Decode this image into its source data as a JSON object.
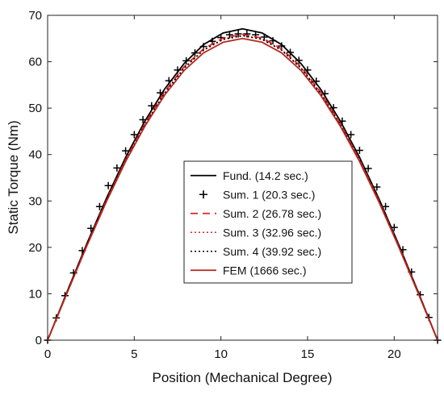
{
  "chart_data": {
    "type": "line",
    "xlabel": "Position (Mechanical Degree)",
    "ylabel": "Static Torque (Nm)",
    "xlim": [
      0,
      22.5
    ],
    "ylim": [
      0,
      70
    ],
    "xticks": [
      0,
      5,
      10,
      15,
      20
    ],
    "yticks": [
      0,
      10,
      20,
      30,
      40,
      50,
      60,
      70
    ],
    "grid": false,
    "legend_position": "lower-center",
    "series": [
      {
        "name": "Fund. (14.2 sec.)",
        "style": "solid",
        "marker": "none",
        "color": "#000000",
        "x": [
          0,
          1.125,
          2.25,
          3.375,
          4.5,
          5.625,
          6.75,
          7.875,
          9,
          10.125,
          11.25,
          12.375,
          13.5,
          14.625,
          15.75,
          16.875,
          18,
          19.125,
          20.25,
          21.375,
          22.5
        ],
        "y": [
          0,
          10.5,
          20.7,
          30.4,
          39.4,
          47.3,
          54.1,
          59.6,
          63.7,
          66.2,
          67.1,
          66.2,
          63.7,
          59.6,
          54.1,
          47.3,
          39.4,
          30.4,
          20.7,
          10.5,
          0
        ]
      },
      {
        "name": "Sum. 1 (20.3 sec.)",
        "style": "none",
        "marker": "plus",
        "color": "#000000",
        "x": [
          0,
          0.5,
          1,
          1.5,
          2,
          2.5,
          3,
          3.5,
          4,
          4.5,
          5,
          5.5,
          6,
          6.5,
          7,
          7.5,
          8,
          8.5,
          9,
          9.5,
          10,
          10.5,
          11,
          11.5,
          12,
          12.5,
          13,
          13.5,
          14,
          14.5,
          15,
          15.5,
          16,
          16.5,
          17,
          17.5,
          18,
          18.5,
          19,
          19.5,
          20,
          20.5,
          21,
          21.5,
          22,
          22.5
        ],
        "y": [
          0,
          4.8,
          9.6,
          14.5,
          19.3,
          24.1,
          28.8,
          33.3,
          37.1,
          40.8,
          44.3,
          47.5,
          50.5,
          53.3,
          55.9,
          58.2,
          60.2,
          61.9,
          63.3,
          64.4,
          65.2,
          65.8,
          66.0,
          66.0,
          65.8,
          65.3,
          64.5,
          63.4,
          62.0,
          60.3,
          58.2,
          55.8,
          53.1,
          50.1,
          47.2,
          44.3,
          40.9,
          37.0,
          33.0,
          28.8,
          24.3,
          19.5,
          14.7,
          9.8,
          4.9,
          0
        ]
      },
      {
        "name": "Sum. 2 (26.78 sec.)",
        "style": "dashed",
        "marker": "none",
        "color": "#d62728",
        "x": [
          0,
          1.125,
          2.25,
          3.375,
          4.5,
          5.625,
          6.75,
          7.875,
          9,
          10.125,
          11.25,
          12.375,
          13.5,
          14.625,
          15.75,
          16.875,
          18,
          19.125,
          20.25,
          21.375,
          22.5
        ],
        "y": [
          0,
          10.3,
          20.4,
          30.0,
          38.9,
          46.8,
          53.5,
          58.9,
          62.8,
          65.1,
          65.9,
          65.1,
          62.8,
          58.9,
          53.5,
          46.8,
          38.9,
          30.0,
          20.4,
          10.3,
          0
        ]
      },
      {
        "name": "Sum. 3 (32.96 sec.)",
        "style": "dotted",
        "marker": "none",
        "color": "#d62728",
        "x": [
          0,
          1.125,
          2.25,
          3.375,
          4.5,
          5.625,
          6.75,
          7.875,
          9,
          10.125,
          11.25,
          12.375,
          13.5,
          14.625,
          15.75,
          16.875,
          18,
          19.125,
          20.25,
          21.375,
          22.5
        ],
        "y": [
          0,
          10.3,
          20.3,
          29.9,
          38.8,
          46.6,
          53.3,
          58.7,
          62.6,
          64.9,
          65.7,
          64.9,
          62.6,
          58.7,
          53.3,
          46.6,
          38.8,
          29.9,
          20.3,
          10.3,
          0
        ]
      },
      {
        "name": "Sum. 4 (39.92 sec.)",
        "style": "dotted",
        "marker": "none",
        "color": "#000000",
        "x": [
          0,
          1.125,
          2.25,
          3.375,
          4.5,
          5.625,
          6.75,
          7.875,
          9,
          10.125,
          11.25,
          12.375,
          13.5,
          14.625,
          15.75,
          16.875,
          18,
          19.125,
          20.25,
          21.375,
          22.5
        ],
        "y": [
          0,
          10.3,
          20.3,
          29.9,
          38.7,
          46.5,
          53.2,
          58.6,
          62.5,
          64.8,
          65.6,
          64.8,
          62.5,
          58.6,
          53.2,
          46.5,
          38.7,
          29.9,
          20.3,
          10.3,
          0
        ]
      },
      {
        "name": "FEM (1666 sec.)",
        "style": "solid",
        "marker": "none",
        "color": "#b5261e",
        "x": [
          0,
          1.125,
          2.25,
          3.375,
          4.5,
          5.625,
          6.75,
          7.875,
          9,
          10.125,
          11.25,
          12.375,
          13.5,
          14.625,
          15.75,
          16.875,
          18,
          19.125,
          20.25,
          21.375,
          22.5
        ],
        "y": [
          0,
          10.2,
          20.2,
          29.7,
          38.5,
          46.2,
          52.8,
          58.1,
          61.9,
          64.2,
          65.0,
          64.2,
          61.9,
          58.1,
          52.8,
          46.2,
          38.5,
          29.7,
          20.2,
          10.2,
          0
        ]
      }
    ]
  }
}
